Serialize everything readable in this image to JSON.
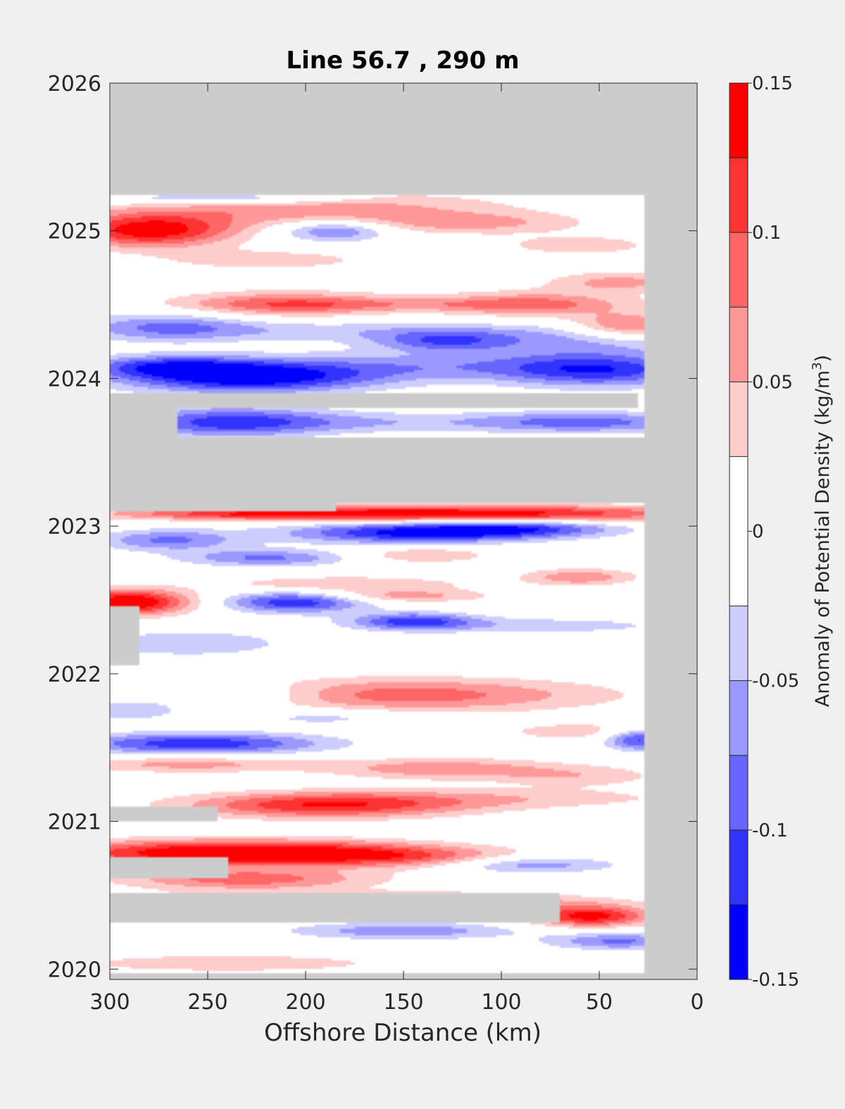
{
  "chart_data": {
    "type": "heatmap",
    "title": "Line 56.7 , 290 m",
    "xlabel": "Offshore Distance (km)",
    "ylabel": "",
    "xlim": [
      300,
      0
    ],
    "ylim": [
      2019.93,
      2026
    ],
    "x_reversed": true,
    "x_ticks": [
      300,
      250,
      200,
      150,
      100,
      50,
      0
    ],
    "y_ticks": [
      2020,
      2021,
      2022,
      2023,
      2024,
      2025,
      2026
    ],
    "colorbar": {
      "label_prefix": "Anomaly of Potential Density (kg/m",
      "label_sup": "3",
      "label_suffix": ")",
      "range": [
        -0.15,
        0.15
      ],
      "ticks": [
        -0.15,
        -0.1,
        -0.05,
        0,
        0.05,
        0.1,
        0.15
      ],
      "tick_labels": [
        "-0.15",
        "-0.1",
        "-0.05",
        "0",
        "0.05",
        "0.1",
        "0.15"
      ],
      "levels": [
        -0.15,
        -0.125,
        -0.1,
        -0.075,
        -0.05,
        -0.025,
        0.025,
        0.05,
        0.075,
        0.1,
        0.125,
        0.15
      ],
      "colors": [
        "#0000ff",
        "#3333ff",
        "#6666ff",
        "#9999ff",
        "#ccccff",
        "#ffffff",
        "#ffcccc",
        "#ff9999",
        "#ff6666",
        "#ff3333",
        "#ff0000"
      ]
    },
    "no_data_color": "#cccccc",
    "data_coverage": {
      "x_min": 27,
      "x_max": 300,
      "y_min": 2019.96,
      "y_max": 2025.24
    },
    "missing_bands": [
      {
        "x0": 27,
        "x1": 300,
        "y0": 2023.15,
        "y1": 2023.6
      },
      {
        "x0": 30,
        "x1": 300,
        "y0": 2023.8,
        "y1": 2023.9
      },
      {
        "x0": 265,
        "x1": 300,
        "y0": 2023.6,
        "y1": 2023.8
      },
      {
        "x0": 185,
        "x1": 300,
        "y0": 2023.09,
        "y1": 2023.15
      },
      {
        "x0": 70,
        "x1": 300,
        "y0": 2020.3,
        "y1": 2020.5
      },
      {
        "x0": 240,
        "x1": 300,
        "y0": 2020.6,
        "y1": 2020.75
      },
      {
        "x0": 245,
        "x1": 300,
        "y0": 2021.0,
        "y1": 2021.1
      },
      {
        "x0": 285,
        "x1": 300,
        "y0": 2022.05,
        "y1": 2022.45
      }
    ],
    "anomalies": [
      {
        "x": 280,
        "y": 2025.0,
        "sx": 30,
        "sy": 0.08,
        "v": 0.14
      },
      {
        "x": 200,
        "y": 2025.15,
        "sx": 70,
        "sy": 0.09,
        "v": 0.07
      },
      {
        "x": 240,
        "y": 2025.22,
        "sx": 45,
        "sy": 0.03,
        "v": -0.08
      },
      {
        "x": 115,
        "y": 2025.05,
        "sx": 40,
        "sy": 0.05,
        "v": 0.05
      },
      {
        "x": 220,
        "y": 2024.8,
        "sx": 40,
        "sy": 0.05,
        "v": 0.04
      },
      {
        "x": 60,
        "y": 2024.9,
        "sx": 30,
        "sy": 0.05,
        "v": 0.04
      },
      {
        "x": 40,
        "y": 2024.65,
        "sx": 25,
        "sy": 0.05,
        "v": 0.06
      },
      {
        "x": 210,
        "y": 2024.5,
        "sx": 40,
        "sy": 0.06,
        "v": 0.09
      },
      {
        "x": 85,
        "y": 2024.5,
        "sx": 35,
        "sy": 0.06,
        "v": 0.08
      },
      {
        "x": 35,
        "y": 2024.35,
        "sx": 20,
        "sy": 0.06,
        "v": 0.09
      },
      {
        "x": 150,
        "y": 2024.5,
        "sx": 60,
        "sy": 0.03,
        "v": 0.03
      },
      {
        "x": 185,
        "y": 2025.0,
        "sx": 20,
        "sy": 0.05,
        "v": -0.09
      },
      {
        "x": 270,
        "y": 2024.35,
        "sx": 30,
        "sy": 0.07,
        "v": -0.07
      },
      {
        "x": 180,
        "y": 2024.32,
        "sx": 80,
        "sy": 0.05,
        "v": -0.04
      },
      {
        "x": 130,
        "y": 2024.25,
        "sx": 25,
        "sy": 0.05,
        "v": -0.08
      },
      {
        "x": 60,
        "y": 2024.25,
        "sx": 45,
        "sy": 0.07,
        "v": -0.05
      },
      {
        "x": 230,
        "y": 2024.0,
        "sx": 45,
        "sy": 0.07,
        "v": -0.14
      },
      {
        "x": 270,
        "y": 2024.08,
        "sx": 30,
        "sy": 0.05,
        "v": -0.09
      },
      {
        "x": 140,
        "y": 2024.08,
        "sx": 80,
        "sy": 0.07,
        "v": -0.06
      },
      {
        "x": 50,
        "y": 2024.05,
        "sx": 35,
        "sy": 0.08,
        "v": -0.1
      },
      {
        "x": 240,
        "y": 2023.7,
        "sx": 35,
        "sy": 0.07,
        "v": -0.11
      },
      {
        "x": 175,
        "y": 2023.7,
        "sx": 40,
        "sy": 0.05,
        "v": -0.04
      },
      {
        "x": 60,
        "y": 2023.7,
        "sx": 45,
        "sy": 0.05,
        "v": -0.09
      },
      {
        "x": 110,
        "y": 2023.08,
        "sx": 80,
        "sy": 0.04,
        "v": 0.14
      },
      {
        "x": 230,
        "y": 2023.08,
        "sx": 55,
        "sy": 0.03,
        "v": 0.09
      },
      {
        "x": 145,
        "y": 2022.95,
        "sx": 45,
        "sy": 0.05,
        "v": -0.13
      },
      {
        "x": 90,
        "y": 2022.98,
        "sx": 35,
        "sy": 0.04,
        "v": -0.09
      },
      {
        "x": 270,
        "y": 2022.9,
        "sx": 25,
        "sy": 0.05,
        "v": -0.08
      },
      {
        "x": 220,
        "y": 2022.78,
        "sx": 30,
        "sy": 0.04,
        "v": -0.08
      },
      {
        "x": 140,
        "y": 2022.8,
        "sx": 25,
        "sy": 0.04,
        "v": 0.05
      },
      {
        "x": 60,
        "y": 2022.65,
        "sx": 20,
        "sy": 0.04,
        "v": 0.07
      },
      {
        "x": 180,
        "y": 2022.6,
        "sx": 45,
        "sy": 0.04,
        "v": 0.05
      },
      {
        "x": 290,
        "y": 2022.48,
        "sx": 22,
        "sy": 0.06,
        "v": 0.16
      },
      {
        "x": 205,
        "y": 2022.48,
        "sx": 25,
        "sy": 0.05,
        "v": -0.12
      },
      {
        "x": 150,
        "y": 2022.52,
        "sx": 30,
        "sy": 0.03,
        "v": 0.06
      },
      {
        "x": 145,
        "y": 2022.35,
        "sx": 22,
        "sy": 0.04,
        "v": -0.11
      },
      {
        "x": 80,
        "y": 2022.32,
        "sx": 50,
        "sy": 0.04,
        "v": -0.04
      },
      {
        "x": 260,
        "y": 2022.2,
        "sx": 35,
        "sy": 0.06,
        "v": -0.05
      },
      {
        "x": 150,
        "y": 2021.85,
        "sx": 70,
        "sy": 0.08,
        "v": 0.09
      },
      {
        "x": 230,
        "y": 2021.85,
        "sx": 30,
        "sy": 0.06,
        "v": -0.05
      },
      {
        "x": 290,
        "y": 2021.75,
        "sx": 20,
        "sy": 0.05,
        "v": -0.05
      },
      {
        "x": 190,
        "y": 2021.7,
        "sx": 30,
        "sy": 0.04,
        "v": -0.04
      },
      {
        "x": 50,
        "y": 2021.6,
        "sx": 40,
        "sy": 0.05,
        "v": 0.04
      },
      {
        "x": 255,
        "y": 2021.52,
        "sx": 45,
        "sy": 0.05,
        "v": -0.12
      },
      {
        "x": 30,
        "y": 2021.55,
        "sx": 12,
        "sy": 0.05,
        "v": -0.12
      },
      {
        "x": 260,
        "y": 2021.38,
        "sx": 45,
        "sy": 0.04,
        "v": 0.06
      },
      {
        "x": 130,
        "y": 2021.35,
        "sx": 40,
        "sy": 0.05,
        "v": 0.07
      },
      {
        "x": 60,
        "y": 2021.3,
        "sx": 30,
        "sy": 0.05,
        "v": 0.04
      },
      {
        "x": 190,
        "y": 2021.1,
        "sx": 50,
        "sy": 0.06,
        "v": 0.12
      },
      {
        "x": 100,
        "y": 2021.15,
        "sx": 70,
        "sy": 0.05,
        "v": 0.04
      },
      {
        "x": 235,
        "y": 2020.78,
        "sx": 65,
        "sy": 0.06,
        "v": 0.17
      },
      {
        "x": 150,
        "y": 2020.75,
        "sx": 40,
        "sy": 0.05,
        "v": 0.06
      },
      {
        "x": 85,
        "y": 2020.7,
        "sx": 30,
        "sy": 0.04,
        "v": -0.07
      },
      {
        "x": 230,
        "y": 2020.6,
        "sx": 45,
        "sy": 0.05,
        "v": 0.09
      },
      {
        "x": 170,
        "y": 2020.45,
        "sx": 70,
        "sy": 0.04,
        "v": 0.11
      },
      {
        "x": 55,
        "y": 2020.35,
        "sx": 22,
        "sy": 0.05,
        "v": 0.14
      },
      {
        "x": 150,
        "y": 2020.25,
        "sx": 40,
        "sy": 0.04,
        "v": -0.07
      },
      {
        "x": 40,
        "y": 2020.18,
        "sx": 25,
        "sy": 0.04,
        "v": -0.08
      },
      {
        "x": 240,
        "y": 2020.03,
        "sx": 55,
        "sy": 0.04,
        "v": 0.05
      }
    ]
  }
}
